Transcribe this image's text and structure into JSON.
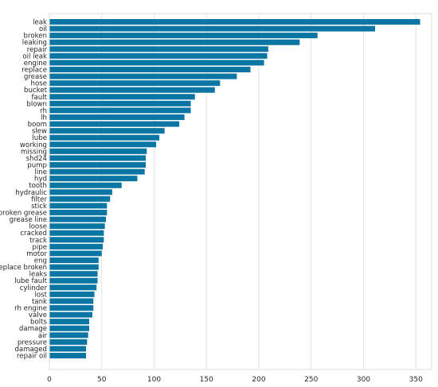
{
  "chart_data": {
    "type": "bar",
    "orientation": "horizontal",
    "title": "",
    "xlabel": "",
    "ylabel": "",
    "xlim": [
      0,
      365
    ],
    "x_ticks": [
      0,
      50,
      100,
      150,
      200,
      250,
      300,
      350
    ],
    "grid": "vertical",
    "bar_color": "#0b75a3",
    "categories": [
      "leak",
      "oil",
      "broken",
      "leaking",
      "repair",
      "oil leak",
      "engine",
      "replace",
      "grease",
      "hose",
      "bucket",
      "fault",
      "blown",
      "rh",
      "lh",
      "boom",
      "slew",
      "lube",
      "working",
      "missing",
      "shd24",
      "pump",
      "line",
      "hyd",
      "tooth",
      "hydraulic",
      "filter",
      "stick",
      "broken grease",
      "grease line",
      "loose",
      "cracked",
      "track",
      "pipe",
      "motor",
      "eng",
      "replace broken",
      "leaks",
      "lube fault",
      "cylinder",
      "lost",
      "tank",
      "rh engine",
      "valve",
      "bolts",
      "damage",
      "air",
      "pressure",
      "damaged",
      "repair oil"
    ],
    "values": [
      354,
      311,
      256,
      239,
      209,
      208,
      205,
      192,
      179,
      163,
      158,
      139,
      135,
      135,
      129,
      124,
      110,
      105,
      102,
      93,
      92,
      92,
      91,
      84,
      69,
      60,
      58,
      55,
      55,
      54,
      53,
      52,
      52,
      51,
      50,
      47,
      47,
      46,
      46,
      45,
      43,
      42,
      42,
      41,
      38,
      38,
      37,
      36,
      35,
      35
    ]
  }
}
